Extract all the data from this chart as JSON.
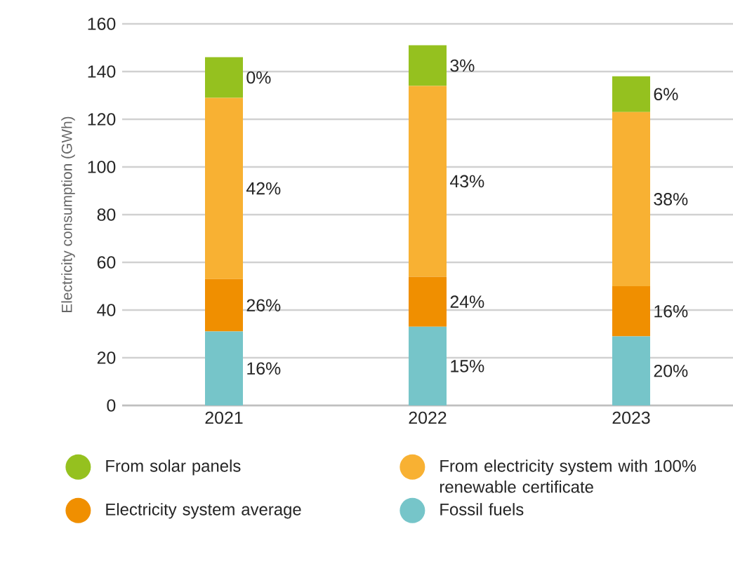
{
  "chart_data": {
    "type": "bar",
    "stacked": true,
    "categories": [
      "2021",
      "2022",
      "2023"
    ],
    "ylabel": "Electricity consumption (GWh)",
    "ylim": [
      0,
      160
    ],
    "yticks": [
      0,
      20,
      40,
      60,
      80,
      100,
      120,
      140,
      160
    ],
    "grid": "y",
    "legend": "bottom",
    "series": [
      {
        "name": "Fossil fuels",
        "color": "#76c5c9",
        "values": [
          31,
          33,
          29
        ]
      },
      {
        "name": "Electricity system average",
        "color": "#f08f00",
        "values": [
          22,
          21,
          21
        ]
      },
      {
        "name": "From electricity system with 100% renewable certificate",
        "color": "#f8b133",
        "values": [
          76,
          80,
          73
        ]
      },
      {
        "name": "From solar panels",
        "color": "#95c11f",
        "values": [
          17,
          17,
          15
        ]
      }
    ],
    "annotations": [
      "16%",
      "26%",
      "42%",
      "0%",
      "15%",
      "24%",
      "43%",
      "3%",
      "20%",
      "16%",
      "38%",
      "6%"
    ]
  }
}
